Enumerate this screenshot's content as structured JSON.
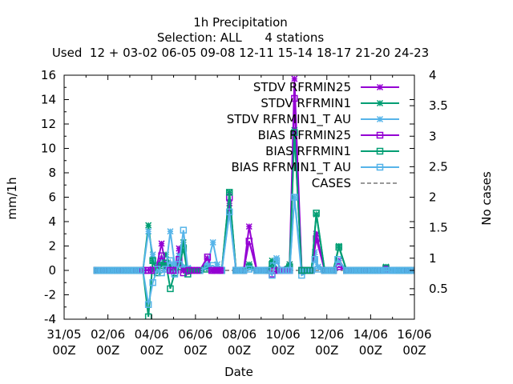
{
  "chart_data": {
    "type": "line",
    "title_lines": [
      "1h Precipitation",
      "Selection: ALL      4 stations",
      "Used  12 + 03-02 06-05 09-08 12-11 15-14 18-17 21-20 24-23"
    ],
    "xlabel": "Date",
    "ylabel": "mm/1h",
    "y2label": "No cases",
    "xlim": [
      0,
      16
    ],
    "ylim": [
      -4,
      16
    ],
    "y2lim": [
      0,
      4
    ],
    "x_ticks": [
      {
        "v": 0,
        "l1": "31/05",
        "l2": "00Z"
      },
      {
        "v": 2,
        "l1": "02/06",
        "l2": "00Z"
      },
      {
        "v": 4,
        "l1": "04/06",
        "l2": "00Z"
      },
      {
        "v": 6,
        "l1": "06/06",
        "l2": "00Z"
      },
      {
        "v": 8,
        "l1": "08/06",
        "l2": "00Z"
      },
      {
        "v": 10,
        "l1": "10/06",
        "l2": "00Z"
      },
      {
        "v": 12,
        "l1": "12/06",
        "l2": "00Z"
      },
      {
        "v": 14,
        "l1": "14/06",
        "l2": "00Z"
      },
      {
        "v": 16,
        "l1": "16/06",
        "l2": "00Z"
      }
    ],
    "y_ticks": [
      "-4",
      "-2",
      "0",
      "2",
      "4",
      "6",
      "8",
      "10",
      "12",
      "14",
      "16"
    ],
    "y2_ticks": [
      "0.5",
      "1",
      "1.5",
      "2",
      "2.5",
      "3",
      "3.5",
      "4"
    ],
    "grid": false,
    "legend_position": "top-right",
    "series": [
      {
        "name": "STDV RFRMIN25",
        "color": "#9400d3",
        "marker": "star",
        "points": [
          [
            1.5,
            0
          ],
          [
            3.6,
            0
          ],
          [
            4.05,
            0.1
          ],
          [
            4.25,
            0.5
          ],
          [
            4.45,
            2.2
          ],
          [
            4.65,
            0.3
          ],
          [
            4.85,
            0
          ],
          [
            5.1,
            0.1
          ],
          [
            5.25,
            1.8
          ],
          [
            5.45,
            0
          ],
          [
            5.7,
            0
          ],
          [
            6.2,
            0
          ],
          [
            6.55,
            1.0
          ],
          [
            6.75,
            0
          ],
          [
            7.2,
            0
          ],
          [
            7.55,
            5.5
          ],
          [
            7.85,
            0
          ],
          [
            8.2,
            0
          ],
          [
            8.45,
            3.6
          ],
          [
            8.8,
            0
          ],
          [
            9.3,
            0
          ],
          [
            9.5,
            0.3
          ],
          [
            9.8,
            0
          ],
          [
            10.3,
            0.5
          ],
          [
            10.52,
            15.7
          ],
          [
            10.85,
            0
          ],
          [
            11.3,
            0
          ],
          [
            11.52,
            3.0
          ],
          [
            11.9,
            0
          ],
          [
            12.3,
            0
          ],
          [
            12.55,
            0.8
          ],
          [
            12.9,
            0
          ],
          [
            14.5,
            0
          ],
          [
            14.7,
            0.2
          ],
          [
            15.0,
            0
          ],
          [
            16.0,
            0
          ]
        ]
      },
      {
        "name": "STDV RFRMIN1",
        "color": "#009e73",
        "marker": "star",
        "points": [
          [
            1.5,
            0
          ],
          [
            3.6,
            0
          ],
          [
            3.85,
            3.7
          ],
          [
            4.05,
            0.8
          ],
          [
            4.25,
            0.3
          ],
          [
            4.45,
            0.5
          ],
          [
            4.65,
            1.3
          ],
          [
            4.85,
            0.4
          ],
          [
            5.05,
            0.2
          ],
          [
            5.25,
            0.5
          ],
          [
            5.45,
            2.3
          ],
          [
            5.65,
            0
          ],
          [
            6.2,
            0
          ],
          [
            6.5,
            0.2
          ],
          [
            7.2,
            0
          ],
          [
            7.55,
            6.4
          ],
          [
            7.85,
            0
          ],
          [
            8.2,
            0
          ],
          [
            8.45,
            0.5
          ],
          [
            8.8,
            0
          ],
          [
            9.3,
            0
          ],
          [
            9.5,
            0.8
          ],
          [
            9.8,
            0
          ],
          [
            10.3,
            0.5
          ],
          [
            10.52,
            11.5
          ],
          [
            10.85,
            0
          ],
          [
            11.3,
            0
          ],
          [
            11.52,
            4.6
          ],
          [
            11.9,
            0
          ],
          [
            12.3,
            0
          ],
          [
            12.55,
            2.0
          ],
          [
            12.9,
            0
          ],
          [
            14.5,
            0
          ],
          [
            14.7,
            0.3
          ],
          [
            15.0,
            0
          ],
          [
            16.0,
            0
          ]
        ]
      },
      {
        "name": "STDV RFRMIN1_T AU",
        "color": "#56b4e9",
        "marker": "star",
        "points": [
          [
            1.5,
            0
          ],
          [
            3.6,
            0
          ],
          [
            3.85,
            3.2
          ],
          [
            4.05,
            1.3
          ],
          [
            4.25,
            0.2
          ],
          [
            4.45,
            1.0
          ],
          [
            4.65,
            0.2
          ],
          [
            4.85,
            3.2
          ],
          [
            5.05,
            0.5
          ],
          [
            5.25,
            1.2
          ],
          [
            5.45,
            0.3
          ],
          [
            5.65,
            0.2
          ],
          [
            6.2,
            0
          ],
          [
            6.55,
            0.5
          ],
          [
            6.8,
            2.3
          ],
          [
            7.0,
            0.5
          ],
          [
            7.2,
            0
          ],
          [
            7.55,
            4.7
          ],
          [
            7.85,
            0
          ],
          [
            8.2,
            0
          ],
          [
            8.45,
            0.2
          ],
          [
            8.8,
            0
          ],
          [
            9.3,
            0
          ],
          [
            9.5,
            0.5
          ],
          [
            9.7,
            1.0
          ],
          [
            9.9,
            0
          ],
          [
            10.3,
            0
          ],
          [
            10.52,
            6.0
          ],
          [
            10.85,
            0
          ],
          [
            11.3,
            0
          ],
          [
            11.45,
            1.5
          ],
          [
            11.6,
            0.3
          ],
          [
            11.9,
            0
          ],
          [
            12.3,
            0
          ],
          [
            12.5,
            0.6
          ],
          [
            12.9,
            0
          ],
          [
            14.5,
            0
          ],
          [
            14.7,
            0.1
          ],
          [
            15.0,
            0
          ],
          [
            16.0,
            0
          ]
        ]
      },
      {
        "name": "BIAS RFRMIN25",
        "color": "#9400d3",
        "marker": "square",
        "points": [
          [
            1.5,
            0
          ],
          [
            3.6,
            0
          ],
          [
            4.05,
            0
          ],
          [
            4.25,
            0.2
          ],
          [
            4.45,
            1.2
          ],
          [
            4.65,
            0.1
          ],
          [
            4.85,
            0
          ],
          [
            5.1,
            0
          ],
          [
            5.25,
            0.9
          ],
          [
            5.45,
            -0.2
          ],
          [
            5.7,
            0
          ],
          [
            6.2,
            0
          ],
          [
            6.55,
            1.1
          ],
          [
            6.75,
            0
          ],
          [
            7.2,
            0
          ],
          [
            7.55,
            6.0
          ],
          [
            7.85,
            0
          ],
          [
            8.2,
            0
          ],
          [
            8.45,
            2.4
          ],
          [
            8.8,
            0
          ],
          [
            9.3,
            0
          ],
          [
            9.5,
            -0.3
          ],
          [
            9.8,
            0
          ],
          [
            10.3,
            0
          ],
          [
            10.52,
            14.1
          ],
          [
            10.85,
            0
          ],
          [
            11.3,
            0
          ],
          [
            11.52,
            2.6
          ],
          [
            11.9,
            0
          ],
          [
            12.3,
            0
          ],
          [
            12.55,
            0.3
          ],
          [
            12.9,
            0
          ],
          [
            14.5,
            0
          ],
          [
            14.7,
            0.1
          ],
          [
            15.0,
            0
          ],
          [
            16.0,
            0
          ]
        ]
      },
      {
        "name": "BIAS RFRMIN1",
        "color": "#009e73",
        "marker": "square",
        "points": [
          [
            1.5,
            0
          ],
          [
            3.6,
            0
          ],
          [
            3.85,
            -3.8
          ],
          [
            4.05,
            0.8
          ],
          [
            4.25,
            -0.2
          ],
          [
            4.45,
            0.4
          ],
          [
            4.65,
            0.6
          ],
          [
            4.85,
            -1.5
          ],
          [
            5.05,
            -0.2
          ],
          [
            5.25,
            0.3
          ],
          [
            5.45,
            1.8
          ],
          [
            5.65,
            -0.3
          ],
          [
            6.2,
            0
          ],
          [
            6.5,
            0.1
          ],
          [
            7.2,
            0
          ],
          [
            7.55,
            6.4
          ],
          [
            7.85,
            0
          ],
          [
            8.2,
            0
          ],
          [
            8.45,
            0.3
          ],
          [
            8.8,
            0
          ],
          [
            9.3,
            0
          ],
          [
            9.5,
            0.5
          ],
          [
            9.8,
            0
          ],
          [
            10.3,
            0.3
          ],
          [
            10.52,
            11.3
          ],
          [
            10.85,
            0
          ],
          [
            11.3,
            0
          ],
          [
            11.52,
            4.7
          ],
          [
            11.9,
            0
          ],
          [
            12.3,
            0
          ],
          [
            12.55,
            1.9
          ],
          [
            12.9,
            0
          ],
          [
            14.5,
            0
          ],
          [
            14.7,
            0.2
          ],
          [
            15.0,
            0
          ],
          [
            16.0,
            0
          ]
        ]
      },
      {
        "name": "BIAS RFRMIN1_T AU",
        "color": "#56b4e9",
        "marker": "square",
        "points": [
          [
            1.5,
            0
          ],
          [
            3.6,
            0
          ],
          [
            3.85,
            -2.8
          ],
          [
            4.05,
            -1.0
          ],
          [
            4.25,
            0.1
          ],
          [
            4.45,
            -0.2
          ],
          [
            4.65,
            0.1
          ],
          [
            4.85,
            0.8
          ],
          [
            5.05,
            -0.3
          ],
          [
            5.25,
            0.5
          ],
          [
            5.45,
            3.3
          ],
          [
            5.65,
            0.1
          ],
          [
            6.2,
            0
          ],
          [
            6.55,
            0.3
          ],
          [
            6.8,
            0.4
          ],
          [
            7.0,
            0.1
          ],
          [
            7.2,
            0
          ],
          [
            7.55,
            4.8
          ],
          [
            7.85,
            0
          ],
          [
            8.2,
            0
          ],
          [
            8.45,
            0.1
          ],
          [
            8.8,
            0
          ],
          [
            9.3,
            0
          ],
          [
            9.5,
            -0.4
          ],
          [
            9.7,
            0.8
          ],
          [
            9.9,
            0
          ],
          [
            10.3,
            0
          ],
          [
            10.52,
            6.0
          ],
          [
            10.85,
            -0.4
          ],
          [
            11.3,
            0
          ],
          [
            11.45,
            0.9
          ],
          [
            11.6,
            0.1
          ],
          [
            11.9,
            0
          ],
          [
            12.3,
            0
          ],
          [
            12.5,
            0.9
          ],
          [
            12.9,
            0
          ],
          [
            14.5,
            0
          ],
          [
            14.7,
            0
          ],
          [
            15.0,
            0
          ],
          [
            16.0,
            0
          ]
        ]
      }
    ],
    "cases": {
      "name": "CASES",
      "color": "#999999",
      "points": [
        [
          1.5,
          0.8
        ],
        [
          16.0,
          0.8
        ]
      ]
    }
  }
}
